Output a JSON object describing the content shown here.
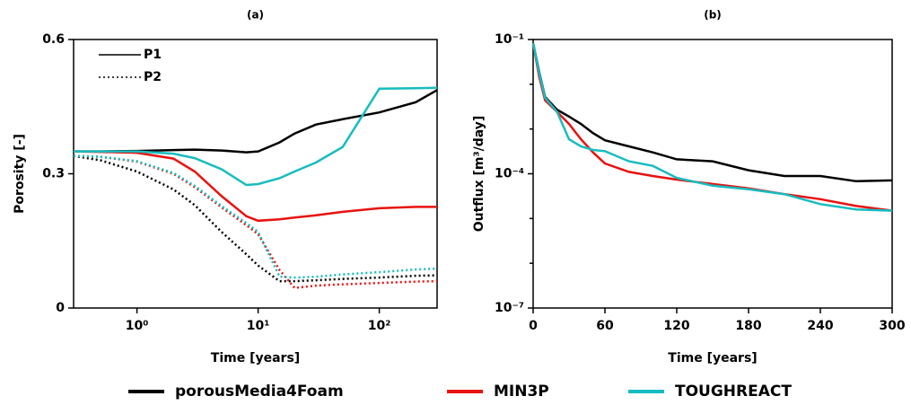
{
  "chart_data": [
    {
      "type": "line",
      "title": "(a)",
      "xlabel": "Time [years]",
      "ylabel": "Porosity [-]",
      "xscale": "log",
      "x": [
        0.3,
        0.5,
        1,
        2,
        3,
        5,
        8,
        10,
        15,
        20,
        30,
        50,
        100,
        200,
        300
      ],
      "xlim": [
        0.3,
        300
      ],
      "xticks": [
        {
          "value": 1,
          "label": "10⁰"
        },
        {
          "value": 10,
          "label": "10¹"
        },
        {
          "value": 100,
          "label": "10²"
        }
      ],
      "ylim": [
        0,
        0.6
      ],
      "yticks": [
        0,
        0.3,
        0.6
      ],
      "line_legend": [
        {
          "label": "P1",
          "dash": "solid"
        },
        {
          "label": "P2",
          "dash": "dotted"
        }
      ],
      "series": [
        {
          "color": "#000000",
          "dash": "solid",
          "values": [
            0.35,
            0.35,
            0.351,
            0.353,
            0.354,
            0.352,
            0.348,
            0.35,
            0.37,
            0.39,
            0.41,
            0.422,
            0.437,
            0.46,
            0.487
          ]
        },
        {
          "color": "#e8120f",
          "dash": "solid",
          "values": [
            0.35,
            0.349,
            0.347,
            0.334,
            0.305,
            0.25,
            0.205,
            0.195,
            0.198,
            0.202,
            0.207,
            0.215,
            0.223,
            0.226,
            0.226
          ]
        },
        {
          "color": "#17bcc0",
          "dash": "solid",
          "values": [
            0.35,
            0.35,
            0.35,
            0.345,
            0.335,
            0.31,
            0.275,
            0.277,
            0.29,
            0.305,
            0.325,
            0.36,
            0.49,
            0.491,
            0.492
          ]
        },
        {
          "color": "#000000",
          "dash": "dotted",
          "values": [
            0.34,
            0.33,
            0.305,
            0.265,
            0.23,
            0.17,
            0.12,
            0.095,
            0.06,
            0.06,
            0.062,
            0.065,
            0.068,
            0.072,
            0.073
          ]
        },
        {
          "color": "#e8120f",
          "dash": "dotted",
          "values": [
            0.34,
            0.338,
            0.327,
            0.3,
            0.27,
            0.225,
            0.185,
            0.165,
            0.085,
            0.045,
            0.05,
            0.053,
            0.056,
            0.059,
            0.06
          ]
        },
        {
          "color": "#17bcc0",
          "dash": "dotted",
          "values": [
            0.34,
            0.338,
            0.328,
            0.302,
            0.273,
            0.228,
            0.19,
            0.17,
            0.07,
            0.068,
            0.07,
            0.075,
            0.08,
            0.086,
            0.088
          ]
        }
      ]
    },
    {
      "type": "line",
      "title": "(b)",
      "xlabel": "Time [years]",
      "ylabel": "Outflux [m³/day]",
      "yscale": "log",
      "x": [
        0,
        5,
        10,
        20,
        30,
        40,
        50,
        60,
        80,
        100,
        120,
        150,
        180,
        210,
        240,
        270,
        300
      ],
      "xlim": [
        0,
        300
      ],
      "xticks": [
        0,
        60,
        120,
        180,
        240,
        300
      ],
      "ylim": [
        1e-07,
        0.1
      ],
      "yticks": [
        {
          "value": 1e-07,
          "label": "10⁻⁷"
        },
        {
          "value": 0.0001,
          "label": "10⁻⁴"
        },
        {
          "value": 0.1,
          "label": "10⁻¹"
        }
      ],
      "minor_yticks": [
        1e-06,
        1e-05,
        0.001,
        0.01
      ],
      "series": [
        {
          "color": "#000000",
          "dash": "solid",
          "values": [
            0.083,
            0.019,
            0.0052,
            0.0027,
            0.0019,
            0.0013,
            0.00081,
            0.00056,
            0.00041,
            0.0003,
            0.00021,
            0.00019,
            0.00012,
            8.9e-05,
            8.9e-05,
            6.8e-05,
            7.1e-05
          ]
        },
        {
          "color": "#e8120f",
          "dash": "solid",
          "values": [
            0.083,
            0.015,
            0.0044,
            0.0024,
            0.0013,
            0.00059,
            0.0003,
            0.00017,
            0.00011,
            8.9e-05,
            7.4e-05,
            5.9e-05,
            4.7e-05,
            3.5e-05,
            2.7e-05,
            1.9e-05,
            1.5e-05
          ]
        },
        {
          "color": "#17bcc0",
          "dash": "solid",
          "values": [
            0.083,
            0.018,
            0.005,
            0.0024,
            0.00059,
            0.00041,
            0.00034,
            0.00032,
            0.00019,
            0.00015,
            8.1e-05,
            5.4e-05,
            4.5e-05,
            3.5e-05,
            2.1e-05,
            1.6e-05,
            1.5e-05
          ]
        }
      ]
    }
  ],
  "legend": [
    {
      "name": "porousMedia4Foam",
      "color": "#000000"
    },
    {
      "name": "MIN3P",
      "color": "#e8120f"
    },
    {
      "name": "TOUGHREACT",
      "color": "#17bcc0"
    }
  ]
}
